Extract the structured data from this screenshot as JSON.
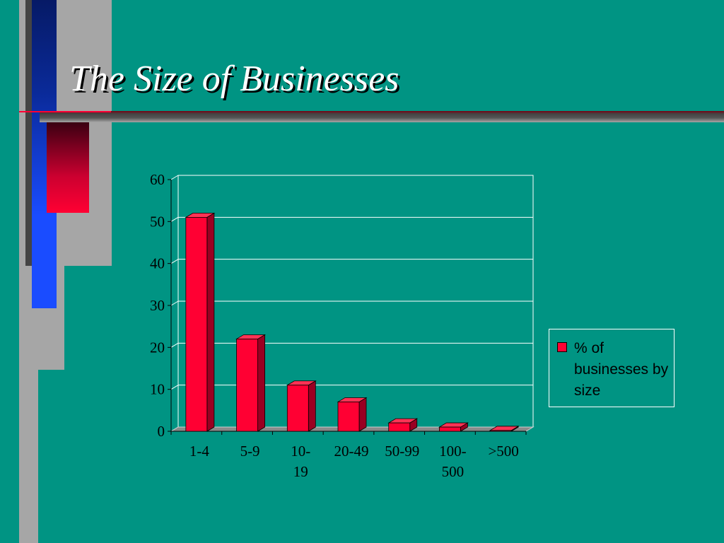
{
  "slide": {
    "title": "The Size of Businesses"
  },
  "colors": {
    "background": "#009483",
    "bar_front": "#ff0033",
    "bar_side": "#990022",
    "bar_top": "#ff3355",
    "gridline": "#ffffff",
    "deco_blue": "#1a4cff",
    "deco_navy": "#061a66",
    "deco_gray": "#a6a6a6",
    "deco_dark": "#444444",
    "deco_red": "#ff0033"
  },
  "chart_data": {
    "type": "bar",
    "title": "",
    "xlabel": "",
    "ylabel": "",
    "categories": [
      "1-4",
      "5-9",
      "10-19",
      "20-49",
      "50-99",
      "100-500",
      ">500"
    ],
    "category_lines": [
      [
        "1-4"
      ],
      [
        "5-9"
      ],
      [
        "10-",
        "19"
      ],
      [
        "20-49"
      ],
      [
        "50-99"
      ],
      [
        "100-",
        "500"
      ],
      [
        ">500"
      ]
    ],
    "series": [
      {
        "name": "% of businesses by size",
        "values": [
          51,
          22,
          11,
          7,
          2,
          1,
          0.2
        ]
      }
    ],
    "ylim": [
      0,
      60
    ],
    "yticks": [
      "0",
      "10",
      "20",
      "30",
      "40",
      "50",
      "60"
    ],
    "grid": true,
    "legend_position": "right",
    "style": "3d"
  },
  "legend": {
    "label": "% of businesses by size"
  }
}
